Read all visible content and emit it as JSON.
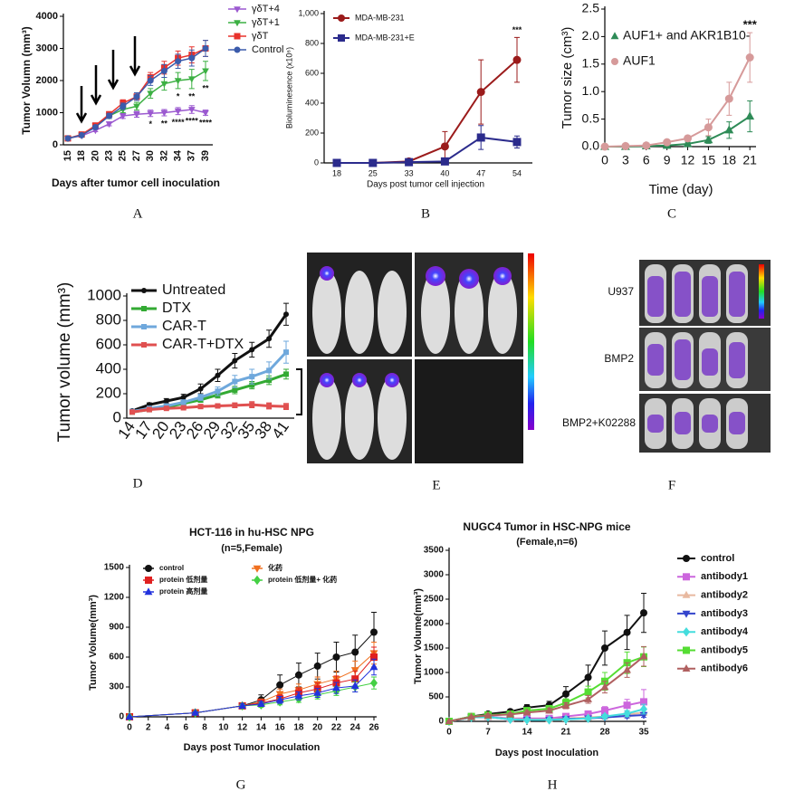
{
  "chart_data": [
    {
      "type": "line",
      "label": "A",
      "xlabel": "Days after tumor cell inoculation",
      "ylabel": "Tumor Volumn (mm³)",
      "categories": [
        "15",
        "18",
        "20",
        "23",
        "25",
        "27",
        "30",
        "32",
        "34",
        "37",
        "39"
      ],
      "ylim": [
        0,
        4000
      ],
      "yticks": [
        0,
        1000,
        2000,
        3000,
        4000
      ],
      "series": [
        {
          "name": "γδT+4",
          "color": "#9b59d0",
          "marker": "triangle-down",
          "values": [
            200,
            280,
            450,
            650,
            900,
            950,
            980,
            1000,
            1050,
            1100,
            1000
          ],
          "errors": [
            20,
            30,
            40,
            60,
            80,
            90,
            100,
            100,
            110,
            120,
            80
          ]
        },
        {
          "name": "γδT+1",
          "color": "#3cb043",
          "marker": "triangle-down",
          "values": [
            200,
            300,
            600,
            900,
            1100,
            1200,
            1600,
            1900,
            2000,
            2050,
            2300
          ],
          "errors": [
            20,
            30,
            50,
            80,
            100,
            120,
            150,
            200,
            250,
            300,
            300
          ]
        },
        {
          "name": "γδT",
          "color": "#e8322c",
          "marker": "square",
          "values": [
            200,
            320,
            600,
            950,
            1300,
            1500,
            2100,
            2400,
            2700,
            2800,
            3000
          ],
          "errors": [
            20,
            30,
            50,
            80,
            100,
            120,
            150,
            200,
            220,
            250,
            250
          ]
        },
        {
          "name": "Control",
          "color": "#3b5bab",
          "marker": "circle",
          "values": [
            200,
            300,
            550,
            900,
            1200,
            1500,
            2000,
            2300,
            2600,
            2700,
            3000
          ],
          "errors": [
            20,
            30,
            50,
            80,
            100,
            120,
            150,
            200,
            220,
            250,
            250
          ]
        }
      ],
      "annotations": [
        {
          "text": "*",
          "x": "34",
          "series": "γδT+1",
          "side": "below"
        },
        {
          "text": "**",
          "x": "37",
          "series": "γδT+1",
          "side": "below"
        },
        {
          "text": "**",
          "x": "39",
          "series": "γδT+1",
          "side": "below"
        },
        {
          "text": "*",
          "x": "30",
          "series": "γδT+4",
          "side": "below"
        },
        {
          "text": "**",
          "x": "32",
          "series": "γδT+4",
          "side": "below"
        },
        {
          "text": "****",
          "x": "34",
          "series": "γδT+4",
          "side": "below"
        },
        {
          "text": "****",
          "x": "37",
          "series": "γδT+4",
          "side": "below"
        },
        {
          "text": "****",
          "x": "39",
          "series": "γδT+4",
          "side": "below"
        }
      ]
    },
    {
      "type": "line",
      "label": "B",
      "xlabel": "Days post tumor cell injection",
      "ylabel": "Bioluminesence (x10⁶)",
      "categories": [
        "18",
        "25",
        "33",
        "40",
        "47",
        "54"
      ],
      "ylim": [
        0,
        1000
      ],
      "yticks": [
        0,
        200,
        400,
        600,
        800,
        {
          "value": 1000,
          "label": "1,000"
        }
      ],
      "series": [
        {
          "name": "MDA-MB-231",
          "color": "#9b1b1b",
          "marker": "circle",
          "values": [
            0,
            0,
            10,
            110,
            475,
            690
          ],
          "errors": [
            0,
            0,
            5,
            100,
            215,
            150
          ]
        },
        {
          "name": "MDA-MB-231+E",
          "color": "#2b2b8c",
          "marker": "square",
          "values": [
            0,
            0,
            5,
            10,
            170,
            140
          ],
          "errors": [
            0,
            0,
            3,
            5,
            80,
            40
          ]
        }
      ],
      "annotations": [
        {
          "text": "***",
          "x": "54",
          "series": "MDA-MB-231",
          "side": "above"
        }
      ]
    },
    {
      "type": "line",
      "label": "C",
      "xlabel": "Time (day)",
      "ylabel": "Tumor size (cm³)",
      "x": [
        0,
        3,
        6,
        9,
        12,
        15,
        18,
        21
      ],
      "xlim": [
        0,
        21.5
      ],
      "xticks": [
        0,
        3,
        6,
        9,
        12,
        15,
        18,
        21
      ],
      "ylim": [
        0,
        2.5
      ],
      "yticks": [
        {
          "value": 0,
          "label": "0.0"
        },
        0.5,
        {
          "value": 1,
          "label": "1.0"
        },
        1.5,
        {
          "value": 2,
          "label": "2.0"
        },
        2.5
      ],
      "series": [
        {
          "name": "AUF1+ and AKR1B10-",
          "color": "#2e8b57",
          "marker": "triangle",
          "values": [
            0,
            0,
            0.01,
            0.02,
            0.05,
            0.12,
            0.3,
            0.55
          ],
          "errors": [
            0,
            0,
            0,
            0.01,
            0.03,
            0.06,
            0.15,
            0.28
          ]
        },
        {
          "name": "AUF1",
          "color": "#d69a9a",
          "marker": "circle",
          "values": [
            0,
            0.01,
            0.02,
            0.08,
            0.15,
            0.35,
            0.87,
            1.62
          ],
          "errors": [
            0,
            0,
            0,
            0.02,
            0.05,
            0.15,
            0.3,
            0.45
          ]
        }
      ],
      "annotations": [
        {
          "text": "***",
          "x": 21,
          "series": "AUF1",
          "side": "above"
        }
      ]
    },
    {
      "type": "line",
      "label": "D",
      "ylabel": "Tumor volume (mm³)",
      "categories": [
        "14",
        "17",
        "20",
        "23",
        "26",
        "29",
        "32",
        "35",
        "38",
        "41"
      ],
      "ylim": [
        0,
        1000
      ],
      "yticks": [
        0,
        200,
        400,
        600,
        800,
        1000
      ],
      "series": [
        {
          "name": "Untreated",
          "color": "#111111",
          "marker": "circle",
          "values": [
            60,
            110,
            140,
            170,
            240,
            350,
            470,
            560,
            650,
            850
          ],
          "errors": [
            10,
            15,
            20,
            25,
            40,
            50,
            60,
            60,
            70,
            90
          ]
        },
        {
          "name": "DTX",
          "color": "#33aa33",
          "marker": "square",
          "values": [
            50,
            70,
            90,
            120,
            150,
            190,
            230,
            270,
            310,
            360
          ],
          "errors": [
            8,
            10,
            12,
            15,
            20,
            25,
            30,
            30,
            35,
            40
          ]
        },
        {
          "name": "CAR-T",
          "color": "#6fa8dc",
          "marker": "square",
          "values": [
            55,
            80,
            100,
            130,
            170,
            220,
            300,
            340,
            390,
            540
          ],
          "errors": [
            8,
            10,
            15,
            20,
            25,
            35,
            50,
            60,
            70,
            90
          ]
        },
        {
          "name": "CAR-T+DTX",
          "color": "#e05050",
          "marker": "square",
          "values": [
            50,
            70,
            80,
            85,
            95,
            100,
            105,
            110,
            100,
            95
          ],
          "errors": [
            8,
            10,
            10,
            12,
            15,
            15,
            20,
            25,
            25,
            25
          ]
        }
      ]
    },
    {
      "type": "line",
      "label": "G",
      "title": "HCT-116 in hu-HSC NPG",
      "subtitle": "(n=5,Female)",
      "xlabel": "Days post Tumor Inoculation",
      "ylabel": "Tumor Volume(mm³)",
      "x": [
        0,
        7,
        12,
        14,
        16,
        18,
        20,
        22,
        24,
        26
      ],
      "xlim": [
        0,
        26
      ],
      "xticks": [
        0,
        2,
        4,
        6,
        8,
        10,
        12,
        14,
        16,
        18,
        20,
        22,
        24,
        26
      ],
      "ylim": [
        0,
        1500
      ],
      "yticks": [
        0,
        300,
        600,
        900,
        1200,
        1500
      ],
      "series": [
        {
          "name": "control",
          "color": "#111111",
          "marker": "circle",
          "values": [
            0,
            40,
            110,
            170,
            320,
            420,
            510,
            600,
            650,
            850
          ],
          "errors": [
            0,
            10,
            20,
            50,
            100,
            120,
            130,
            150,
            170,
            200
          ]
        },
        {
          "name": "化药",
          "color": "#f07020",
          "marker": "triangle-down",
          "values": [
            0,
            40,
            110,
            150,
            230,
            270,
            330,
            380,
            470,
            640
          ],
          "errors": [
            0,
            10,
            20,
            30,
            50,
            60,
            70,
            80,
            90,
            110
          ]
        },
        {
          "name": "protein 低剂量",
          "color": "#e02020",
          "marker": "square",
          "values": [
            0,
            40,
            110,
            140,
            180,
            240,
            280,
            340,
            380,
            600
          ],
          "errors": [
            0,
            10,
            20,
            30,
            40,
            50,
            60,
            70,
            80,
            100
          ]
        },
        {
          "name": "protein 低剂量+ 化药",
          "color": "#44d044",
          "marker": "diamond",
          "values": [
            0,
            40,
            110,
            120,
            150,
            180,
            220,
            260,
            300,
            340
          ],
          "errors": [
            0,
            10,
            20,
            25,
            30,
            35,
            40,
            45,
            50,
            60
          ]
        },
        {
          "name": "protein 高剂量",
          "color": "#2233dd",
          "marker": "triangle",
          "values": [
            0,
            40,
            110,
            130,
            170,
            210,
            240,
            290,
            310,
            500
          ],
          "errors": [
            0,
            10,
            20,
            25,
            35,
            40,
            45,
            55,
            60,
            80
          ]
        }
      ]
    },
    {
      "type": "line",
      "label": "H",
      "title": "NUGC4 Tumor in HSC-NPG mice",
      "subtitle": "(Female,n=6)",
      "xlabel": "Days post Inoculation",
      "ylabel": "Tumor Volume(mm³)",
      "x": [
        0,
        4,
        7,
        11,
        14,
        18,
        21,
        25,
        28,
        32,
        35
      ],
      "xlim": [
        0,
        35
      ],
      "xticks": [
        0,
        7,
        14,
        21,
        28,
        35
      ],
      "ylim": [
        0,
        3500
      ],
      "yticks": [
        0,
        500,
        1000,
        1500,
        2000,
        2500,
        3000,
        3500
      ],
      "series": [
        {
          "name": "control",
          "color": "#111111",
          "marker": "circle",
          "values": [
            0,
            100,
            150,
            200,
            280,
            330,
            560,
            900,
            1500,
            1820,
            2220
          ],
          "errors": [
            0,
            20,
            30,
            40,
            60,
            80,
            150,
            250,
            350,
            350,
            400
          ]
        },
        {
          "name": "antibody1",
          "color": "#cc66dd",
          "marker": "square",
          "values": [
            0,
            90,
            100,
            60,
            60,
            60,
            100,
            150,
            220,
            330,
            400
          ],
          "errors": [
            0,
            20,
            20,
            20,
            20,
            20,
            30,
            50,
            80,
            120,
            250
          ]
        },
        {
          "name": "antibody2",
          "color": "#e8b9a0",
          "marker": "triangle",
          "values": [
            0,
            80,
            90,
            50,
            40,
            40,
            60,
            80,
            100,
            140,
            180
          ],
          "errors": [
            0,
            20,
            20,
            15,
            15,
            15,
            20,
            30,
            40,
            50,
            60
          ]
        },
        {
          "name": "antibody3",
          "color": "#3344cc",
          "marker": "triangle-down",
          "values": [
            0,
            80,
            90,
            40,
            30,
            30,
            50,
            60,
            80,
            110,
            130
          ],
          "errors": [
            0,
            20,
            20,
            15,
            15,
            15,
            20,
            25,
            30,
            40,
            50
          ]
        },
        {
          "name": "antibody4",
          "color": "#44dddd",
          "marker": "diamond",
          "values": [
            0,
            80,
            90,
            40,
            30,
            30,
            40,
            60,
            100,
            160,
            250
          ],
          "errors": [
            0,
            20,
            20,
            15,
            15,
            15,
            20,
            30,
            40,
            60,
            100
          ]
        },
        {
          "name": "antibody5",
          "color": "#55dd33",
          "marker": "square",
          "values": [
            0,
            100,
            130,
            150,
            220,
            260,
            380,
            600,
            820,
            1200,
            1320
          ],
          "errors": [
            0,
            20,
            30,
            40,
            50,
            60,
            80,
            120,
            180,
            220,
            200
          ]
        },
        {
          "name": "antibody6",
          "color": "#b06060",
          "marker": "triangle",
          "values": [
            0,
            90,
            120,
            140,
            180,
            220,
            320,
            450,
            700,
            1050,
            1330
          ],
          "errors": [
            0,
            20,
            30,
            30,
            40,
            50,
            60,
            80,
            120,
            150,
            200
          ]
        }
      ]
    }
  ],
  "figures": [
    {
      "type": "image",
      "label": "E"
    },
    {
      "type": "image",
      "label": "F",
      "row_labels": [
        "U937",
        "BMP2",
        "BMP2+K02288"
      ]
    }
  ]
}
